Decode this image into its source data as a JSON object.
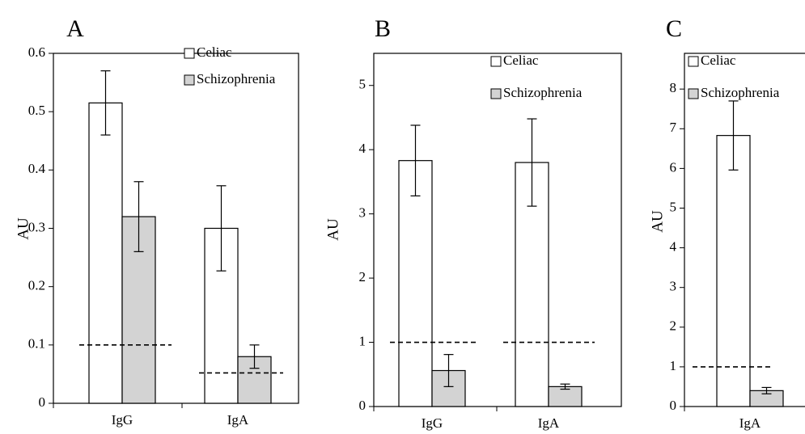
{
  "chart_data": [
    {
      "type": "bar",
      "panel_label": "A",
      "ylabel": "AU",
      "categories": [
        "IgG",
        "IgA"
      ],
      "yticks": [
        "0",
        "0.1",
        "0.2",
        "0.3",
        "0.4",
        "0.5",
        "0.6"
      ],
      "ylim": [
        0,
        0.6
      ],
      "series": [
        {
          "name": "Celiac",
          "values": [
            0.515,
            0.3
          ],
          "errors": [
            0.055,
            0.073
          ],
          "color": "#ffffff"
        },
        {
          "name": "Schizophrenia",
          "values": [
            0.32,
            0.08
          ],
          "errors": [
            0.06,
            0.02
          ],
          "color": "#d3d3d3"
        }
      ],
      "reference_lines": [
        0.1,
        0.052
      ],
      "legend_position": "top-right"
    },
    {
      "type": "bar",
      "panel_label": "B",
      "ylabel": "AU",
      "categories": [
        "IgG",
        "IgA"
      ],
      "yticks": [
        "0",
        "1",
        "2",
        "3",
        "4",
        "5"
      ],
      "ylim": [
        0,
        5.5
      ],
      "series": [
        {
          "name": "Celiac",
          "values": [
            3.83,
            3.8
          ],
          "errors": [
            0.55,
            0.68
          ],
          "color": "#ffffff"
        },
        {
          "name": "Schizophrenia",
          "values": [
            0.56,
            0.31
          ],
          "errors": [
            0.25,
            0.04
          ],
          "color": "#d3d3d3"
        }
      ],
      "reference_lines": [
        1.0,
        1.0
      ],
      "legend_position": "top-right"
    },
    {
      "type": "bar",
      "panel_label": "C",
      "ylabel": "AU",
      "categories": [
        "IgA"
      ],
      "yticks": [
        "0",
        "1",
        "2",
        "3",
        "4",
        "5",
        "6",
        "7",
        "8"
      ],
      "ylim": [
        0,
        8.9
      ],
      "series": [
        {
          "name": "Celiac",
          "values": [
            6.83
          ],
          "errors": [
            0.87
          ],
          "color": "#ffffff"
        },
        {
          "name": "Schizophrenia",
          "values": [
            0.4
          ],
          "errors": [
            0.08
          ],
          "color": "#d3d3d3"
        }
      ],
      "reference_lines": [
        1.0
      ],
      "legend_position": "top-right"
    }
  ]
}
